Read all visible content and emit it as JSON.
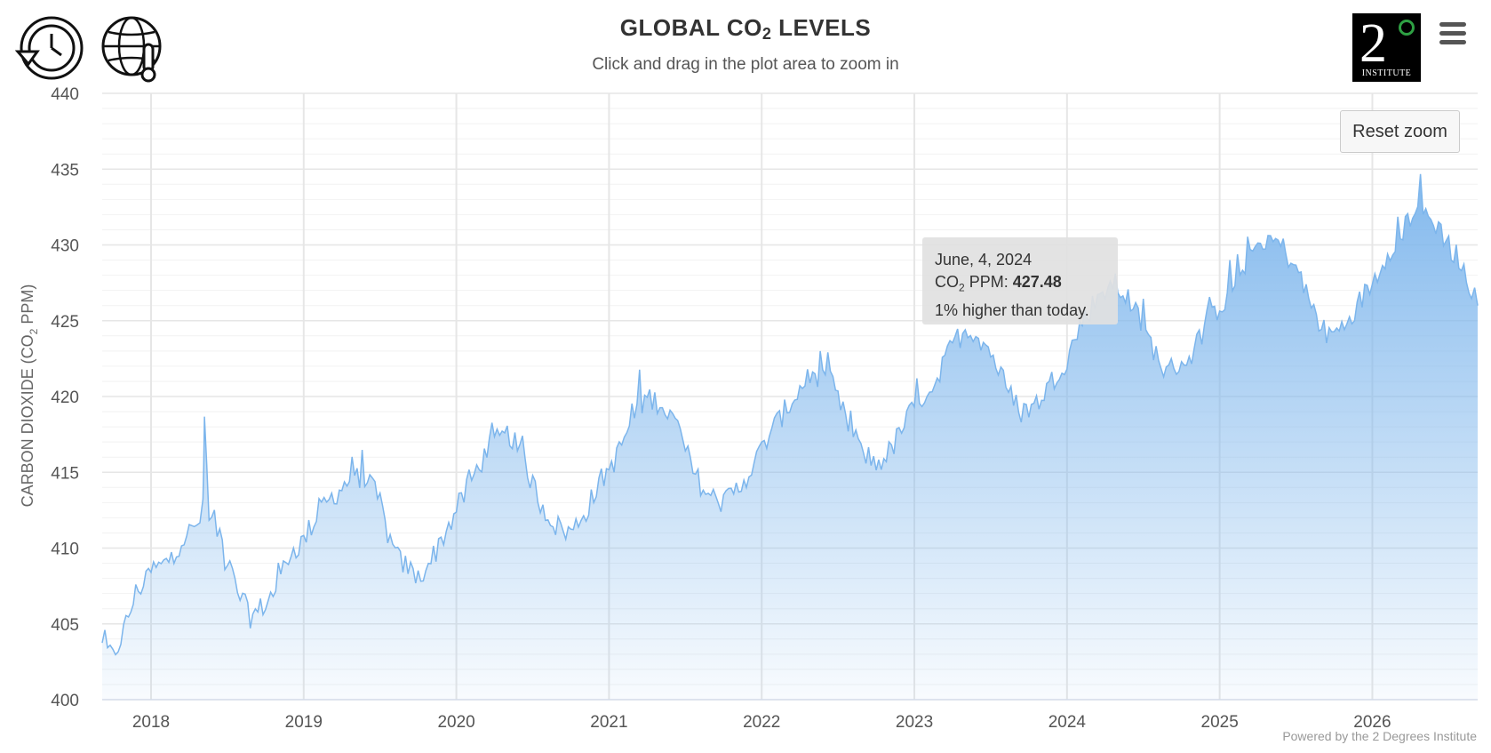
{
  "header": {
    "title_main": "GLOBAL CO",
    "title_sub": "2",
    "title_end": " LEVELS",
    "subtitle": "Click and drag in the plot area to zoom in"
  },
  "toolbar": {
    "history_icon": "history-clock-icon",
    "globe_icon": "globe-thermometer-icon",
    "menu_icon": "hamburger-menu-icon",
    "reset_zoom_label": "Reset zoom"
  },
  "logo": {
    "digit": "2",
    "word": "INSTITUTE"
  },
  "tooltip": {
    "date": "June, 4, 2024",
    "label_pre": "CO",
    "label_sub": "2",
    "label_post": " PPM: ",
    "value": "427.48",
    "comparison": "1% higher than today."
  },
  "credits": "Powered by the 2 Degrees Institute",
  "colors": {
    "line": "#7cb5ec",
    "fill_top": "#7cb5ec",
    "grid": "#e6e6e6"
  },
  "chart_data": {
    "type": "area",
    "title": "GLOBAL CO2 LEVELS",
    "ylabel": "CARBON DIOXIDE (CO2 PPM)",
    "xlabel": "",
    "ylim": [
      400,
      440
    ],
    "xlim": [
      2017.68,
      2026.69
    ],
    "y_ticks": [
      "400",
      "405",
      "410",
      "415",
      "420",
      "425",
      "430",
      "435",
      "440"
    ],
    "x_ticks": [
      "2018",
      "2019",
      "2020",
      "2021",
      "2022",
      "2023",
      "2024",
      "2025",
      "2026"
    ],
    "grid": true,
    "legend": "none",
    "series": [
      {
        "x": [
          2017.68,
          2017.75,
          2017.82,
          2017.9,
          2018.0,
          2018.1,
          2018.2,
          2018.3,
          2018.34,
          2018.35,
          2018.38,
          2018.45,
          2018.55,
          2018.65,
          2018.7,
          2018.8,
          2018.9,
          2019.0,
          2019.1,
          2019.2,
          2019.3,
          2019.4,
          2019.5,
          2019.55,
          2019.6,
          2019.7,
          2019.75,
          2019.85,
          2019.95,
          2020.05,
          2020.15,
          2020.25,
          2020.35,
          2020.45,
          2020.55,
          2020.65,
          2020.75,
          2020.85,
          2020.95,
          2021.05,
          2021.15,
          2021.25,
          2021.35,
          2021.45,
          2021.55,
          2021.65,
          2021.75,
          2021.85,
          2021.95,
          2022.05,
          2022.15,
          2022.25,
          2022.35,
          2022.45,
          2022.55,
          2022.65,
          2022.75,
          2022.85,
          2022.95,
          2023.05,
          2023.15,
          2023.25,
          2023.35,
          2023.42,
          2023.5,
          2023.6,
          2023.7,
          2023.8,
          2023.9,
          2024.0,
          2024.1,
          2024.2,
          2024.3,
          2024.4,
          2024.5,
          2024.6,
          2024.65,
          2024.7,
          2024.8,
          2024.9,
          2025.0,
          2025.1,
          2025.2,
          2025.3,
          2025.4,
          2025.5,
          2025.6,
          2025.7,
          2025.8,
          2025.9,
          2026.0,
          2026.1,
          2026.2,
          2026.28,
          2026.35,
          2026.45,
          2026.55,
          2026.6,
          2026.65,
          2026.69
        ],
        "y": [
          403.5,
          402.8,
          404.5,
          407.0,
          408.5,
          409.0,
          410.5,
          411.5,
          412.5,
          418.5,
          412.0,
          411.0,
          407.5,
          405.5,
          405.8,
          407.0,
          409.5,
          410.5,
          412.5,
          413.5,
          414.5,
          414.8,
          413.0,
          411.0,
          409.5,
          408.5,
          408.0,
          409.5,
          411.5,
          413.5,
          415.5,
          417.0,
          417.5,
          415.5,
          413.0,
          411.5,
          411.0,
          412.5,
          414.5,
          416.0,
          418.5,
          420.0,
          419.5,
          418.0,
          415.0,
          413.5,
          413.0,
          414.0,
          415.5,
          417.5,
          419.0,
          420.5,
          421.5,
          421.0,
          418.5,
          416.5,
          415.5,
          416.5,
          418.5,
          420.0,
          421.0,
          423.5,
          424.5,
          424.0,
          423.0,
          420.5,
          419.0,
          419.5,
          421.0,
          422.5,
          425.0,
          426.5,
          427.5,
          426.5,
          424.5,
          422.5,
          421.5,
          422.0,
          422.5,
          424.5,
          426.0,
          427.5,
          429.5,
          430.5,
          430.0,
          428.5,
          426.0,
          424.0,
          424.5,
          426.0,
          427.5,
          429.5,
          431.0,
          432.5,
          432.0,
          431.0,
          429.0,
          428.0,
          427.0,
          426.0
        ]
      }
    ],
    "tooltip_point": {
      "x": 2024.43,
      "y": 427.48
    }
  }
}
